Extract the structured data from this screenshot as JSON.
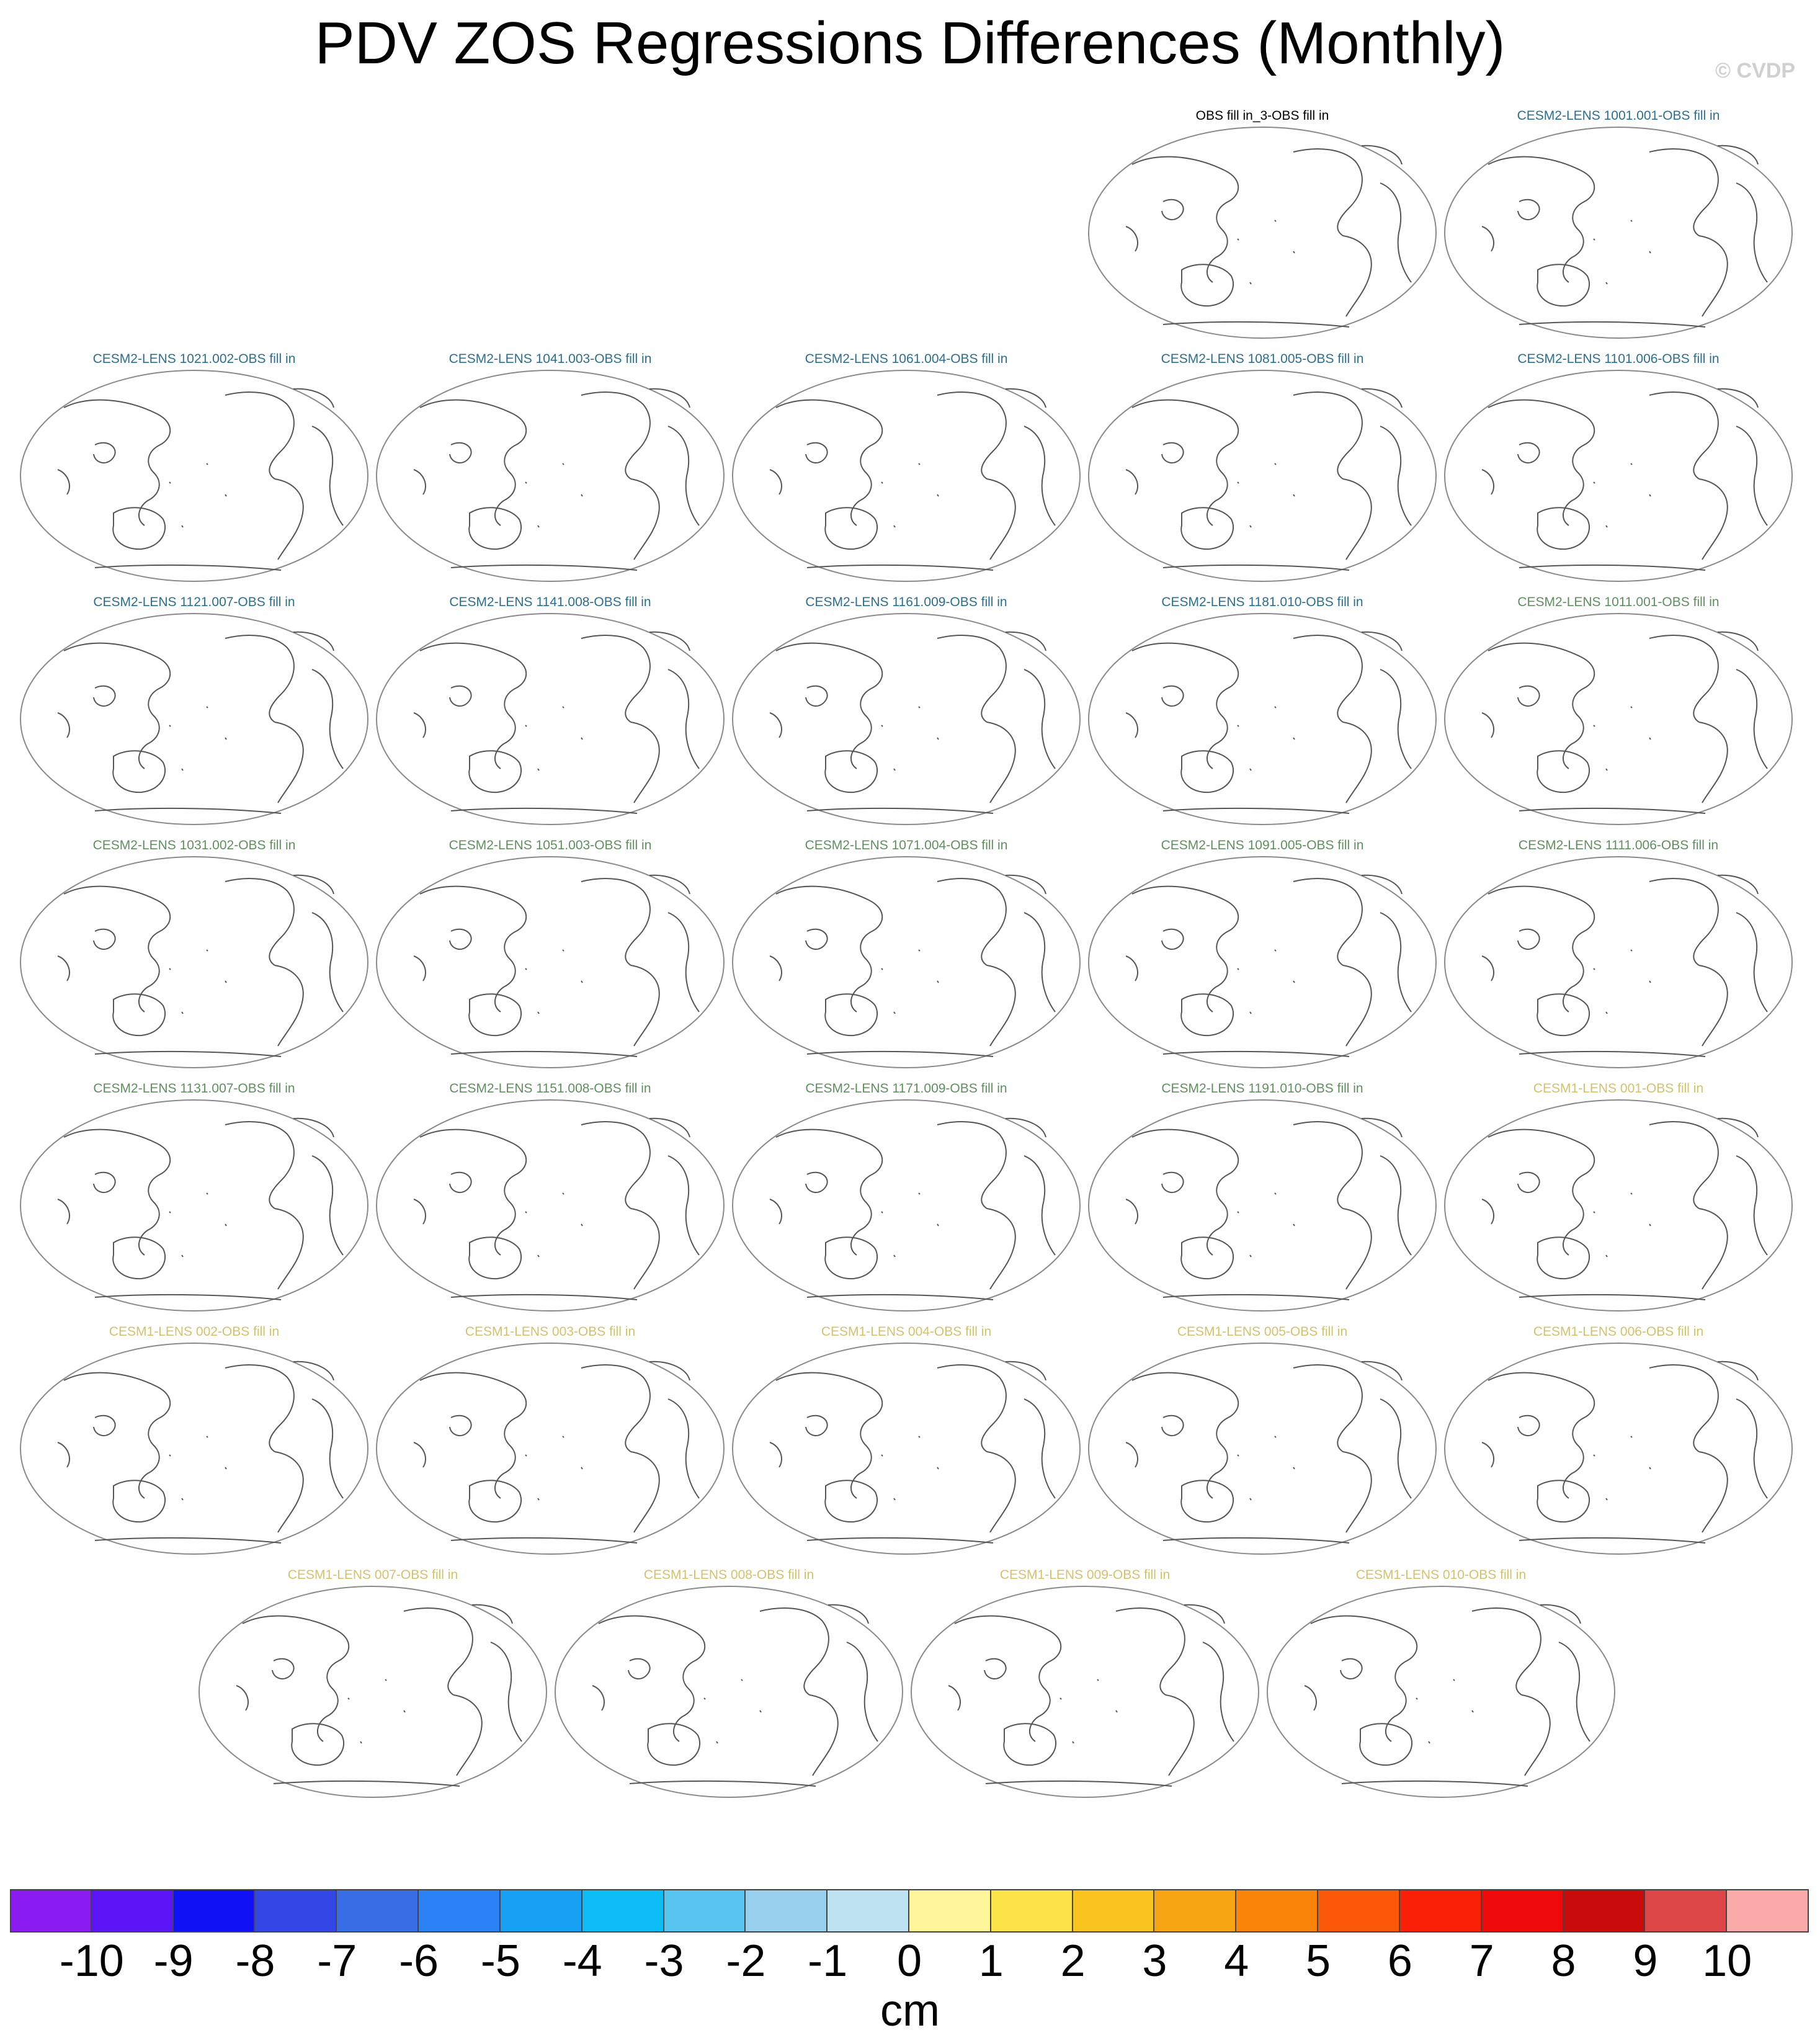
{
  "title": "PDV ZOS Regressions Differences (Monthly)",
  "watermark": "© CVDP",
  "panels": [
    {
      "label": "OBS fill in_3-OBS fill in",
      "color": "#000000"
    },
    {
      "label": "CESM2-LENS 1001.001-OBS fill in",
      "color": "#2a6f8f"
    },
    {
      "label": "CESM2-LENS 1021.002-OBS fill in",
      "color": "#2a6f8f"
    },
    {
      "label": "CESM2-LENS 1041.003-OBS fill in",
      "color": "#2a6f8f"
    },
    {
      "label": "CESM2-LENS 1061.004-OBS fill in",
      "color": "#2a6f8f"
    },
    {
      "label": "CESM2-LENS 1081.005-OBS fill in",
      "color": "#2a6f8f"
    },
    {
      "label": "CESM2-LENS 1101.006-OBS fill in",
      "color": "#2a6f8f"
    },
    {
      "label": "CESM2-LENS 1121.007-OBS fill in",
      "color": "#2a6f8f"
    },
    {
      "label": "CESM2-LENS 1141.008-OBS fill in",
      "color": "#2a6f8f"
    },
    {
      "label": "CESM2-LENS 1161.009-OBS fill in",
      "color": "#2a6f8f"
    },
    {
      "label": "CESM2-LENS 1181.010-OBS fill in",
      "color": "#2a6f8f"
    },
    {
      "label": "CESM2-LENS 1011.001-OBS fill in",
      "color": "#5f8f5f"
    },
    {
      "label": "CESM2-LENS 1031.002-OBS fill in",
      "color": "#5f8f5f"
    },
    {
      "label": "CESM2-LENS 1051.003-OBS fill in",
      "color": "#5f8f5f"
    },
    {
      "label": "CESM2-LENS 1071.004-OBS fill in",
      "color": "#5f8f5f"
    },
    {
      "label": "CESM2-LENS 1091.005-OBS fill in",
      "color": "#5f8f5f"
    },
    {
      "label": "CESM2-LENS 1111.006-OBS fill in",
      "color": "#5f8f5f"
    },
    {
      "label": "CESM2-LENS 1131.007-OBS fill in",
      "color": "#5f8f5f"
    },
    {
      "label": "CESM2-LENS 1151.008-OBS fill in",
      "color": "#5f8f5f"
    },
    {
      "label": "CESM2-LENS 1171.009-OBS fill in",
      "color": "#5f8f5f"
    },
    {
      "label": "CESM2-LENS 1191.010-OBS fill in",
      "color": "#5f8f5f"
    },
    {
      "label": "CESM1-LENS 001-OBS fill in",
      "color": "#d4c26a"
    },
    {
      "label": "CESM1-LENS 002-OBS fill in",
      "color": "#d4c26a"
    },
    {
      "label": "CESM1-LENS 003-OBS fill in",
      "color": "#d4c26a"
    },
    {
      "label": "CESM1-LENS 004-OBS fill in",
      "color": "#d4c26a"
    },
    {
      "label": "CESM1-LENS 005-OBS fill in",
      "color": "#d4c26a"
    },
    {
      "label": "CESM1-LENS 006-OBS fill in",
      "color": "#d4c26a"
    },
    {
      "label": "CESM1-LENS 007-OBS fill in",
      "color": "#d4c26a"
    },
    {
      "label": "CESM1-LENS 008-OBS fill in",
      "color": "#d4c26a"
    },
    {
      "label": "CESM1-LENS 009-OBS fill in",
      "color": "#d4c26a"
    },
    {
      "label": "CESM1-LENS 010-OBS fill in",
      "color": "#d4c26a"
    }
  ],
  "colorbar": {
    "colors": [
      "#8b1cf0",
      "#5a14f5",
      "#1010f5",
      "#3246e6",
      "#3a6ee6",
      "#2a82f5",
      "#18a0f5",
      "#0cbef5",
      "#58c4f0",
      "#98d0ee",
      "#bfe2f2",
      "#fff59a",
      "#fde34a",
      "#fac41e",
      "#f7a512",
      "#fa840a",
      "#fa5a08",
      "#fa2008",
      "#ee0a0a",
      "#c80a0a",
      "#dc4646",
      "#fbaaaa"
    ],
    "ticks": [
      "-10",
      "-9",
      "-8",
      "-7",
      "-6",
      "-5",
      "-4",
      "-3",
      "-2",
      "-1",
      "0",
      "1",
      "2",
      "3",
      "4",
      "5",
      "6",
      "7",
      "8",
      "9",
      "10"
    ],
    "unit": "cm"
  }
}
